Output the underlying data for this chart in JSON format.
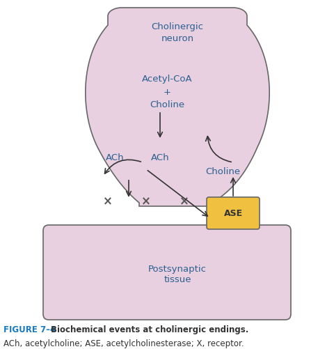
{
  "bg_color": "#ffffff",
  "neuron_color": "#e8d0e0",
  "ase_color": "#f0c040",
  "border_color": "#666666",
  "text_color": "#2a6090",
  "arrow_color": "#333333",
  "figure_label": "FIGURE 7–4",
  "figure_bold_text": "Biochemical events at cholinergic endings.",
  "figure_normal_text": "ACh, acetylcholine; ASE, acetylcholinesterase; X, receptor.",
  "neuron_label": "Cholinergic\nneuron",
  "reactants_label": "Acetyl-CoA\n+\nCholine",
  "ach_neuron_label": "ACh",
  "ach_synaptic_label": "ACh",
  "choline_label": "Choline",
  "ase_label": "ASE",
  "postsynaptic_label": "Postsynaptic\ntissue"
}
